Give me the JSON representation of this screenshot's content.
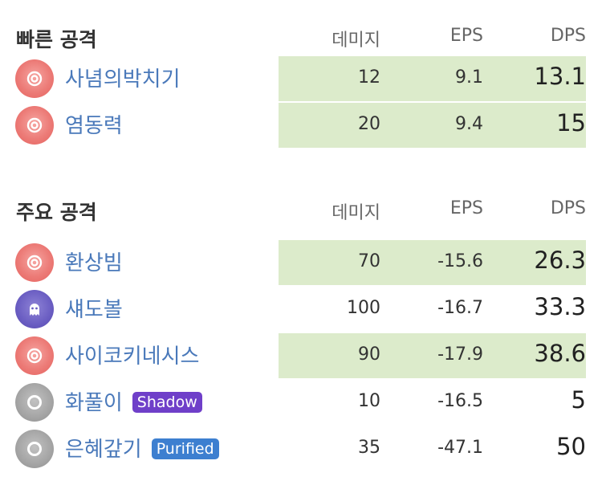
{
  "fast": {
    "title": "빠른 공격",
    "col_damage": "데미지",
    "col_eps": "EPS",
    "col_dps": "DPS",
    "moves": [
      {
        "name": "사념의박치기",
        "icon": "psychic-swirl-icon",
        "damage": "12",
        "eps": "9.1",
        "dps": "13.1",
        "highlight": true
      },
      {
        "name": "염동력",
        "icon": "psychic-swirl-icon",
        "damage": "20",
        "eps": "9.4",
        "dps": "15",
        "highlight": true
      }
    ]
  },
  "charged": {
    "title": "주요 공격",
    "col_damage": "데미지",
    "col_eps": "EPS",
    "col_dps": "DPS",
    "moves": [
      {
        "name": "환상빔",
        "icon": "psychic-swirl-icon",
        "damage": "70",
        "eps": "-15.6",
        "dps": "26.3",
        "highlight": true
      },
      {
        "name": "섀도볼",
        "icon": "ghost-icon",
        "damage": "100",
        "eps": "-16.7",
        "dps": "33.3",
        "highlight": false
      },
      {
        "name": "사이코키네시스",
        "icon": "psychic-swirl-icon",
        "damage": "90",
        "eps": "-17.9",
        "dps": "38.6",
        "highlight": true
      },
      {
        "name": "화풀이",
        "icon": "normal-ring-icon",
        "badge": "Shadow",
        "badge_color": "#6f3fc9",
        "damage": "10",
        "eps": "-16.5",
        "dps": "5",
        "highlight": false
      },
      {
        "name": "은혜갚기",
        "icon": "normal-ring-icon",
        "badge": "Purified",
        "badge_color": "#3d7fd0",
        "damage": "35",
        "eps": "-47.1",
        "dps": "50",
        "highlight": false
      }
    ]
  },
  "colors": {
    "highlight": "#dcebcb",
    "move_name": "#4a79ba",
    "psychic": "#ec7b77",
    "ghost": "#6a5dc2",
    "normal": "#a4a4a4"
  }
}
